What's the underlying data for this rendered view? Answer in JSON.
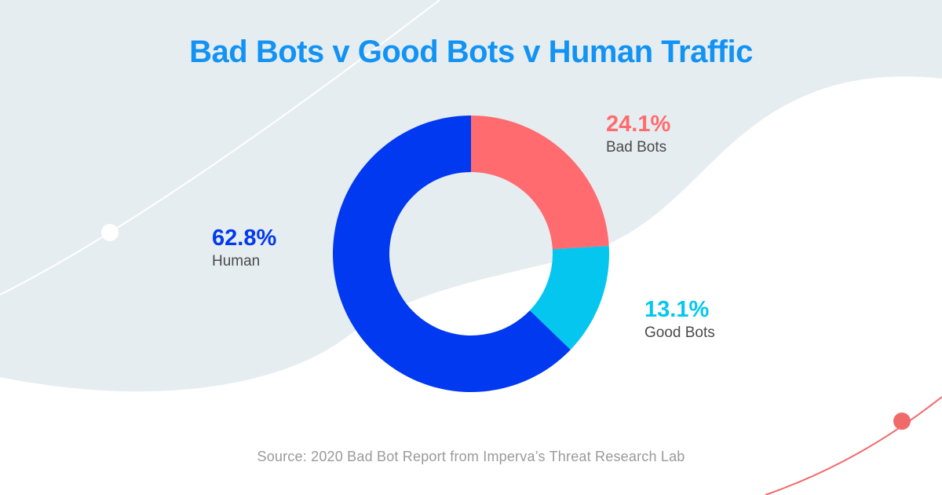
{
  "title": "Bad Bots v Good Bots v Human Traffic",
  "source": "Source: 2020 Bad Bot Report from Imperva’s Threat Research Lab",
  "colors": {
    "title": "#1293f4",
    "background_shape": "#e6edf0",
    "curve_white": "#ffffff",
    "curve_coral": "#f16a6a"
  },
  "chart_data": {
    "type": "pie",
    "variant": "donut",
    "title": "Bad Bots v Good Bots v Human Traffic",
    "unit": "%",
    "slices": [
      {
        "label": "Bad Bots",
        "value": 24.1,
        "display": "24.1%",
        "color": "#ff6b6e"
      },
      {
        "label": "Good Bots",
        "value": 13.1,
        "display": "13.1%",
        "color": "#04c6ee"
      },
      {
        "label": "Human",
        "value": 62.8,
        "display": "62.8%",
        "color": "#0039f0"
      }
    ]
  }
}
